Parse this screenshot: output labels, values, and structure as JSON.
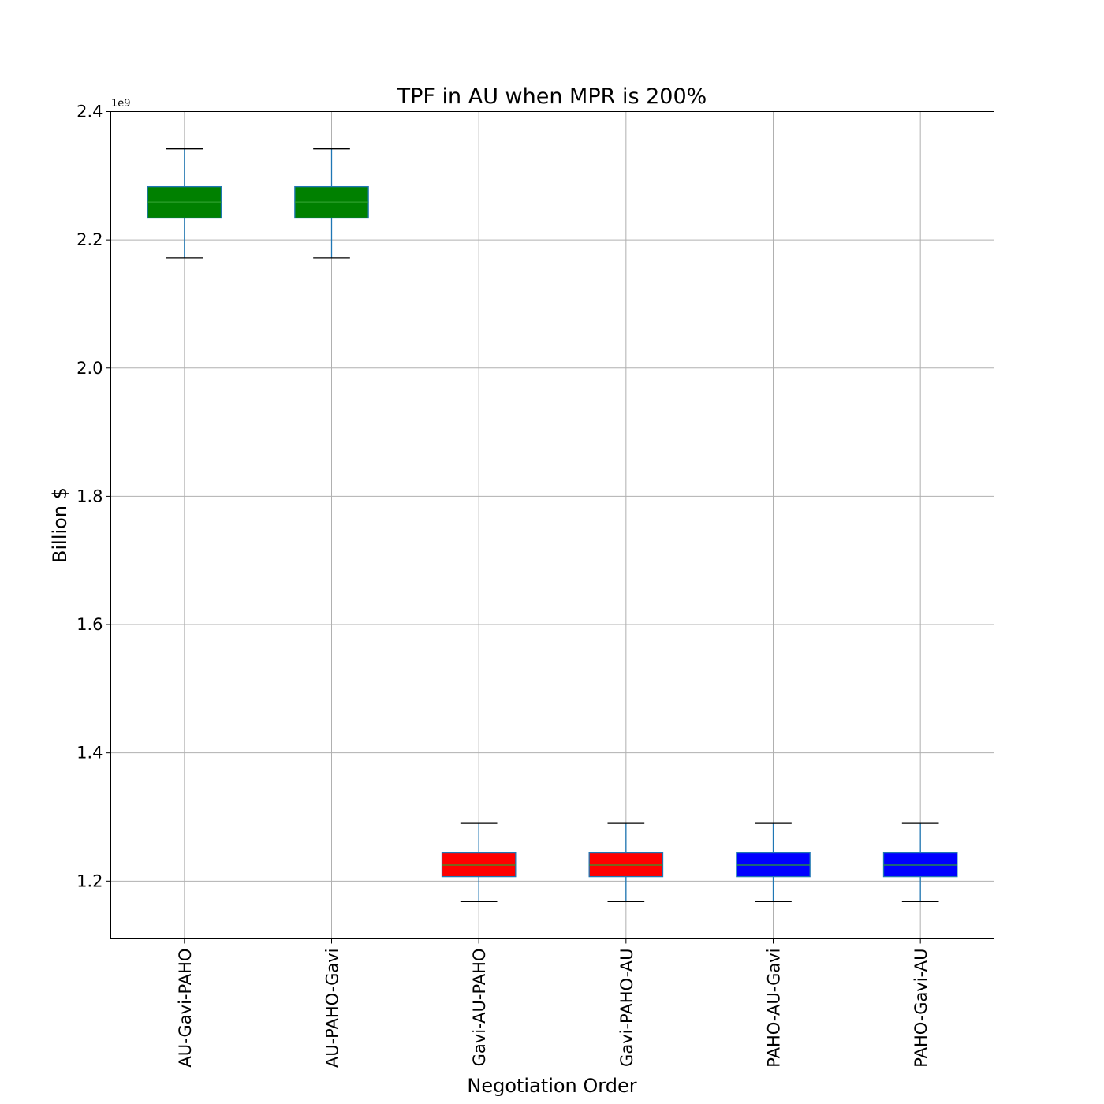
{
  "chart_data": {
    "type": "box",
    "title": "TPF in AU when MPR is 200%",
    "xlabel": "Negotiation Order",
    "ylabel": "Billion $",
    "y_offset_label": "1e9",
    "ylim": [
      1.11,
      2.4
    ],
    "y_ticks": [
      "1.2",
      "1.4",
      "1.6",
      "1.8",
      "2.0",
      "2.2",
      "2.4"
    ],
    "grid": true,
    "categories": [
      "AU-Gavi-PAHO",
      "AU-PAHO-Gavi",
      "Gavi-AU-PAHO",
      "Gavi-PAHO-AU",
      "PAHO-AU-Gavi",
      "PAHO-Gavi-AU"
    ],
    "boxes": [
      {
        "label": "AU-Gavi-PAHO",
        "whisker_low": 2.172,
        "q1": 2.234,
        "median": 2.259,
        "q3": 2.283,
        "whisker_high": 2.342,
        "color": "#008000"
      },
      {
        "label": "AU-PAHO-Gavi",
        "whisker_low": 2.172,
        "q1": 2.234,
        "median": 2.259,
        "q3": 2.283,
        "whisker_high": 2.342,
        "color": "#008000"
      },
      {
        "label": "Gavi-AU-PAHO",
        "whisker_low": 1.168,
        "q1": 1.207,
        "median": 1.225,
        "q3": 1.244,
        "whisker_high": 1.29,
        "color": "#ff0000"
      },
      {
        "label": "Gavi-PAHO-AU",
        "whisker_low": 1.168,
        "q1": 1.207,
        "median": 1.225,
        "q3": 1.244,
        "whisker_high": 1.29,
        "color": "#ff0000"
      },
      {
        "label": "PAHO-AU-Gavi",
        "whisker_low": 1.168,
        "q1": 1.207,
        "median": 1.225,
        "q3": 1.244,
        "whisker_high": 1.29,
        "color": "#0000ff"
      },
      {
        "label": "PAHO-Gavi-AU",
        "whisker_low": 1.168,
        "q1": 1.207,
        "median": 1.225,
        "q3": 1.244,
        "whisker_high": 1.29,
        "color": "#0000ff"
      }
    ],
    "whisker_color": "#1f77b4",
    "median_color": "#2ca02c",
    "box_edge_color": "#1f77b4"
  }
}
